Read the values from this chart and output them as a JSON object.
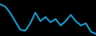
{
  "x": [
    0,
    1,
    2,
    3,
    4,
    5,
    6,
    7,
    8,
    9,
    10,
    11,
    12,
    13,
    14,
    15,
    16,
    17,
    18,
    19
  ],
  "y": [
    38,
    36,
    30,
    22,
    14,
    13,
    20,
    30,
    22,
    26,
    21,
    24,
    18,
    22,
    28,
    22,
    18,
    20,
    12,
    10
  ],
  "line_color": "#2196c8",
  "linewidth": 1.5,
  "background_color": "#000000",
  "ylim": [
    8,
    42
  ]
}
